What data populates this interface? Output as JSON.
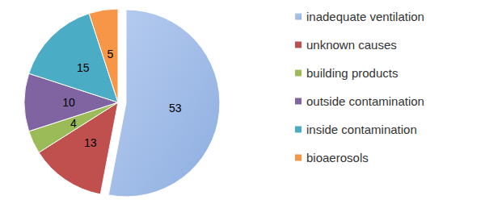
{
  "chart_data": {
    "type": "pie",
    "categories": [
      "inadequate ventilation",
      "unknown causes",
      "building products",
      "outside contamination",
      "inside contamination",
      "bioaerosols"
    ],
    "values": [
      53,
      13,
      4,
      10,
      15,
      5
    ],
    "colors": [
      "#8eaee0",
      "#c0504d",
      "#9bbb59",
      "#8064a2",
      "#4bacc6",
      "#f79646"
    ],
    "data_labels": true,
    "legend": "right"
  }
}
